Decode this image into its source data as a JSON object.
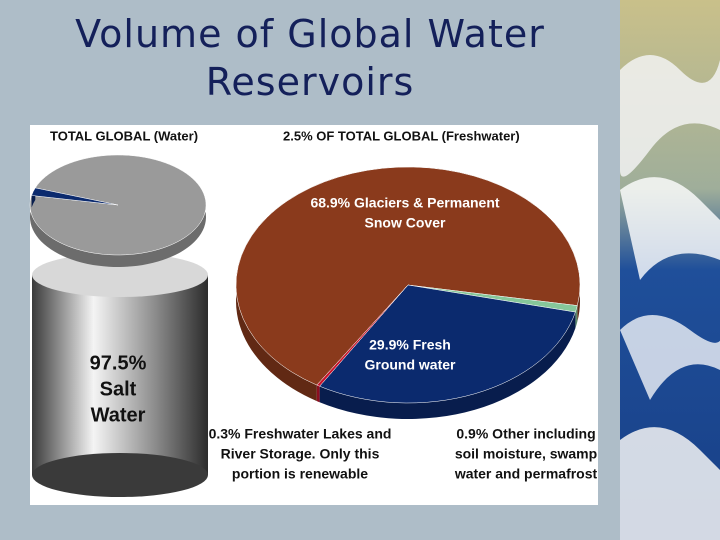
{
  "slide_title": "Volume of Global Water Reservoirs",
  "chart_data": [
    {
      "type": "pie",
      "title": "TOTAL GLOBAL (Water)",
      "categories": [
        "Salt Water",
        "Freshwater"
      ],
      "values": [
        97.5,
        2.5
      ],
      "value_labels": [
        [
          "97.5%",
          "Salt",
          "Water"
        ],
        null
      ],
      "colors": [
        "#9a9a9a",
        "#0b2a6e"
      ]
    },
    {
      "type": "pie",
      "title": "2.5% OF TOTAL GLOBAL (Freshwater)",
      "categories": [
        "Glaciers & Permanent Snow Cover",
        "Other including soil moisture, swamp water and permafrost",
        "Fresh Ground water",
        "Freshwater Lakes and River Storage"
      ],
      "values": [
        68.9,
        0.9,
        29.9,
        0.3
      ],
      "value_labels": [
        [
          "68.9% Glaciers & Permanent",
          "Snow Cover"
        ],
        [
          "0.9% Other including",
          "soil moisture, swamp",
          "water and permafrost"
        ],
        [
          "29.9% Fresh",
          "Ground water"
        ],
        [
          "0.3% Freshwater Lakes and",
          "River Storage. Only this",
          "portion is renewable"
        ]
      ],
      "colors": [
        "#8a3a1c",
        "#86c79a",
        "#0b2a6e",
        "#c8142c"
      ]
    }
  ]
}
